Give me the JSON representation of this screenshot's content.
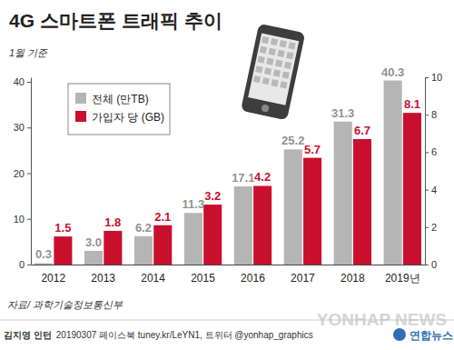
{
  "chart_data": {
    "type": "bar",
    "title": "4G 스마트폰 트래픽 추이",
    "subtitle": "1월 기준",
    "categories": [
      "2012",
      "2013",
      "2014",
      "2015",
      "2016",
      "2017",
      "2018",
      "2019년"
    ],
    "series": [
      {
        "name": "전체 (만TB)",
        "color": "#b5b5b5",
        "values": [
          0.3,
          3.0,
          6.2,
          11.3,
          17.1,
          25.2,
          31.3,
          40.3
        ],
        "value_labels": [
          "0.3",
          "3.0",
          "6.2",
          "11.3",
          "17.1",
          "25.2",
          "31.3",
          "40.3"
        ]
      },
      {
        "name": "가입자 당 (GB)",
        "color": "#c8102e",
        "axis": "y2",
        "values": [
          1.5,
          1.8,
          2.1,
          3.2,
          4.2,
          5.7,
          6.7,
          8.1
        ]
      }
    ],
    "ylim": [
      0,
      41
    ],
    "yticks": [
      0,
      10,
      20,
      30,
      40
    ],
    "y2lim": [
      0,
      10
    ],
    "y2ticks": [
      0,
      2,
      4,
      6,
      8,
      10
    ],
    "grid": false,
    "legend": "upper left",
    "data_labels": true,
    "annotations": [
      "자료/ 과학기술정보통신부",
      "김지영 인턴",
      "20190307 페이스북 tuney.kr/LeYN1, 트위터 @yonhap_graphics",
      "연합뉴스",
      "YONHAP NEWS"
    ]
  }
}
